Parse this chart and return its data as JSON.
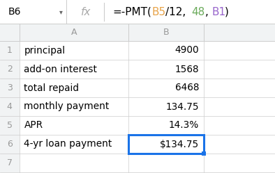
{
  "cell_ref": "B6",
  "formula_parts": [
    {
      "text": "=-PMT(",
      "color": "#000000"
    },
    {
      "text": "B5",
      "color": "#e8a44a"
    },
    {
      "text": "/12,",
      "color": "#000000"
    },
    {
      "text": "48",
      "color": "#6aaa5a"
    },
    {
      "text": ",",
      "color": "#000000"
    },
    {
      "text": "B1",
      "color": "#9966cc"
    },
    {
      "text": ")",
      "color": "#000000"
    }
  ],
  "rows": [
    {
      "row": 1,
      "label": "principal",
      "value": "4900"
    },
    {
      "row": 2,
      "label": "add-on interest",
      "value": "1568"
    },
    {
      "row": 3,
      "label": "total repaid",
      "value": "6468"
    },
    {
      "row": 4,
      "label": "monthly payment",
      "value": "134.75"
    },
    {
      "row": 5,
      "label": "APR",
      "value": "14.3%"
    },
    {
      "row": 6,
      "label": "4-yr loan payment",
      "value": "$134.75"
    }
  ],
  "grid_color": "#cccccc",
  "header_bg": "#f1f3f4",
  "row_num_color": "#999999",
  "selected_cell_border": "#1a73e8",
  "formula_bar_bg": "#ffffff",
  "fx_color": "#aaaaaa",
  "separator_color": "#cccccc"
}
